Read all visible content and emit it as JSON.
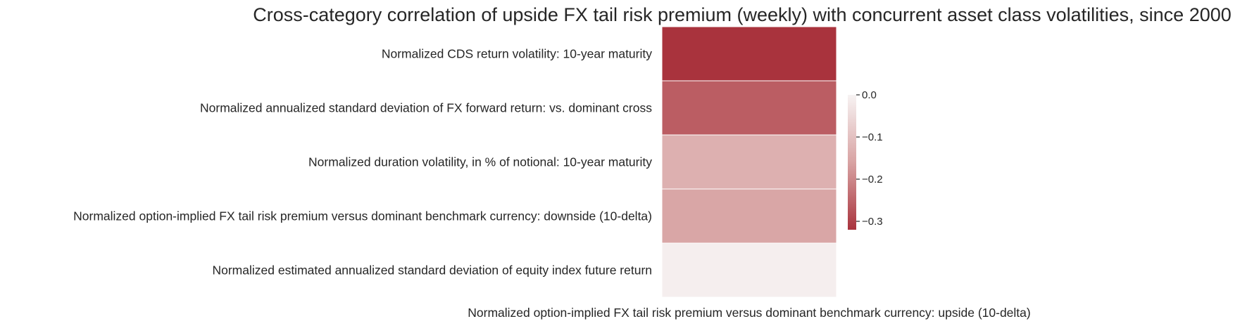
{
  "chart_data": {
    "type": "heatmap",
    "title": "Cross-category correlation of upside FX tail risk premium (weekly) with concurrent asset class volatilities, since 2000",
    "xlabel": "Normalized option-implied FX tail risk premium versus dominant benchmark currency: upside (10-delta)",
    "ylabel": "",
    "rows": [
      {
        "label": "Normalized CDS return volatility: 10-year maturity",
        "value": -0.33
      },
      {
        "label": "Normalized annualized standard deviation of FX forward return: vs. dominant cross",
        "value": -0.26
      },
      {
        "label": "Normalized duration volatility, in % of notional: 10-year maturity",
        "value": -0.135
      },
      {
        "label": "Normalized option-implied FX tail risk premium versus dominant benchmark currency: downside (10-delta)",
        "value": -0.155
      },
      {
        "label": "Normalized estimated annualized standard deviation of equity index future return",
        "value": -0.01
      }
    ],
    "colorbar": {
      "range": [
        -0.32,
        0.0
      ],
      "ticks": [
        "0.0",
        "−0.1",
        "−0.2",
        "−0.3"
      ],
      "tick_values": [
        0.0,
        -0.1,
        -0.2,
        -0.3
      ],
      "colors": {
        "low": "#a9333d",
        "mid": "#d8a3a3",
        "high": "#f7f3f3"
      }
    },
    "grid": false
  }
}
